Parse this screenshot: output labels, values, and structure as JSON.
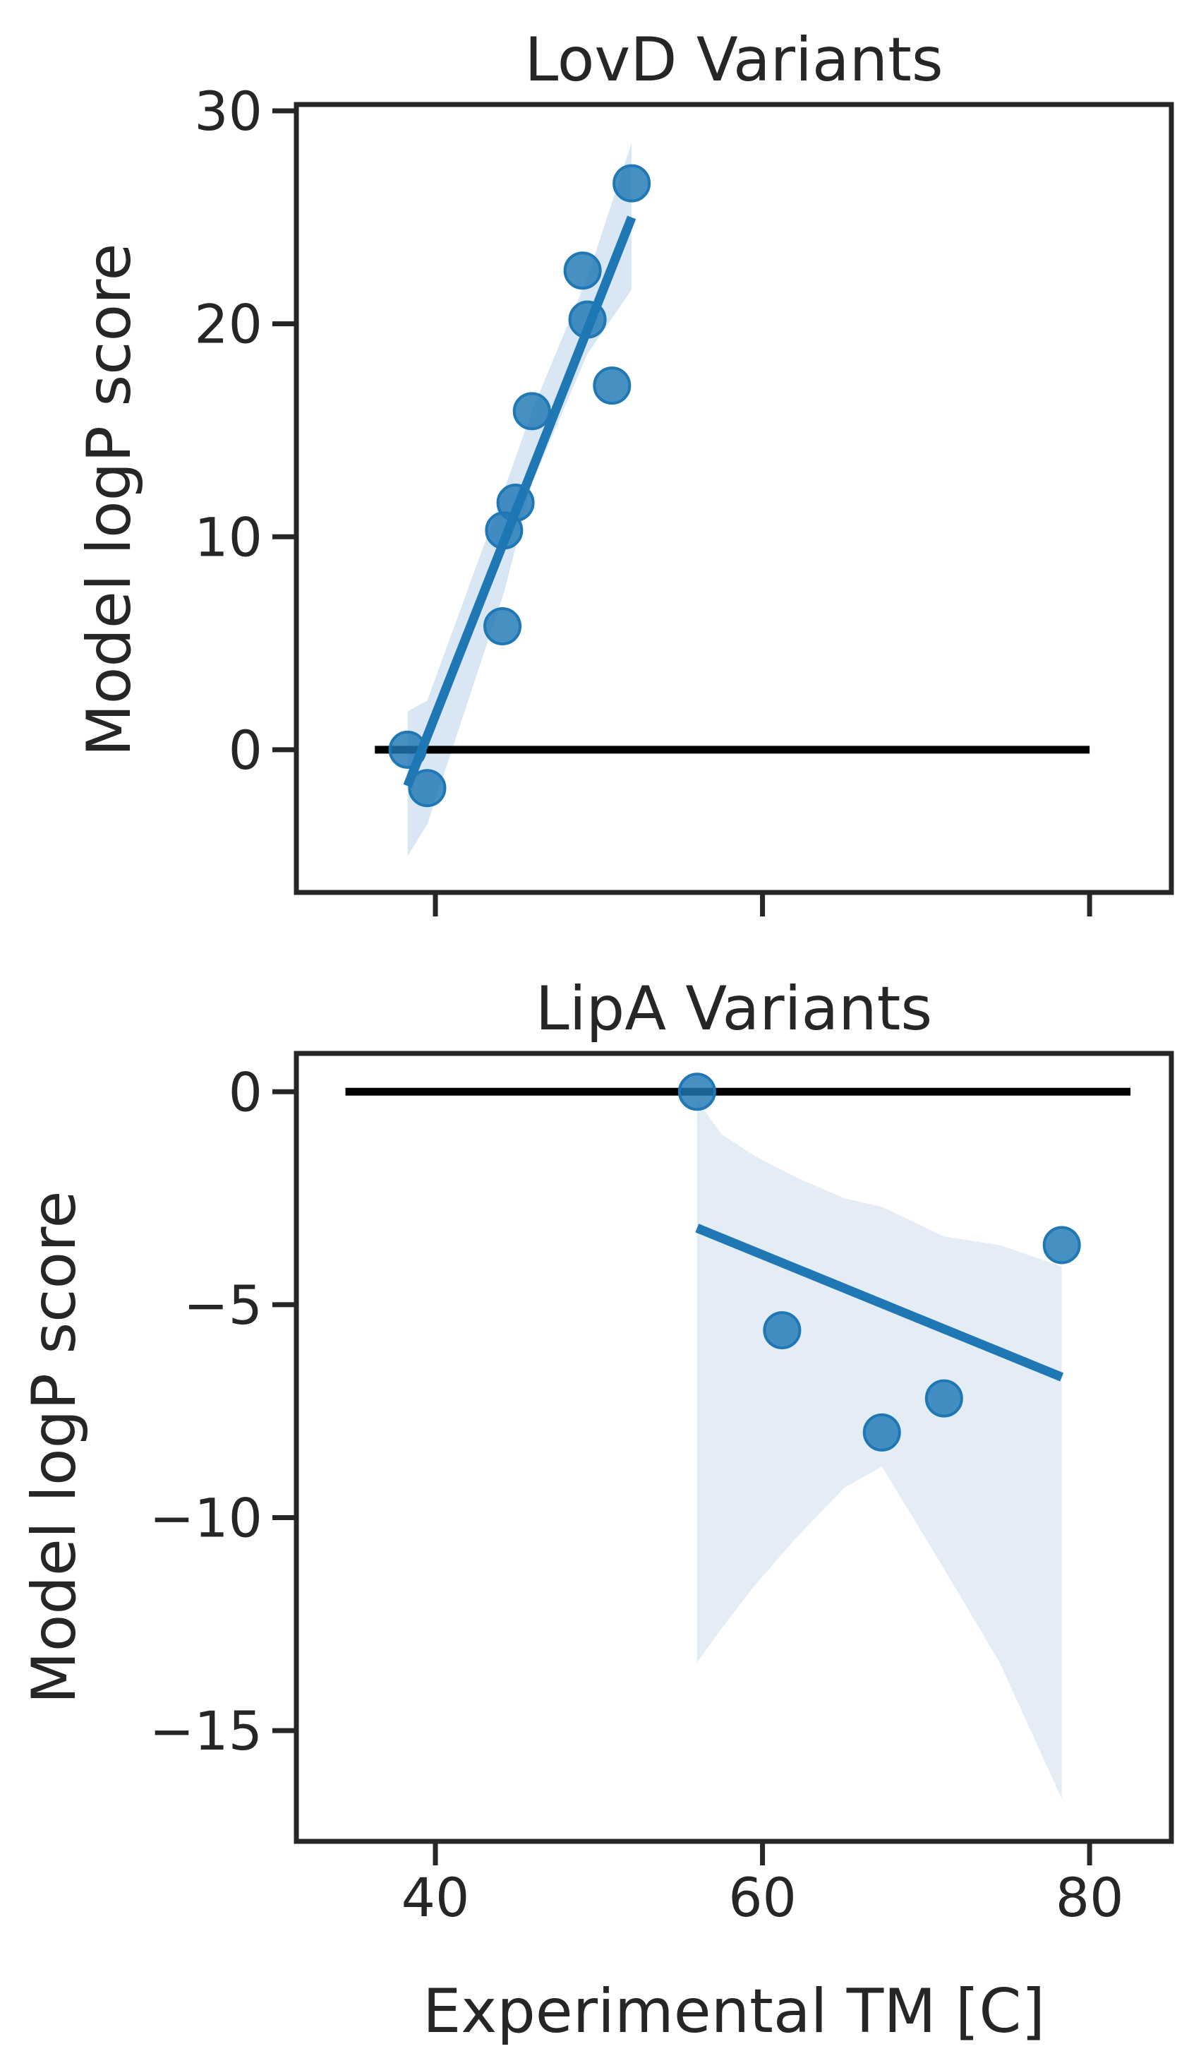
{
  "chart_data": [
    {
      "type": "scatter",
      "title": "LovD Variants",
      "xlabel": "",
      "ylabel": "Model logP score",
      "xlim": [
        31.5,
        85
      ],
      "ylim": [
        -6.7,
        30.3
      ],
      "xticks": [
        40,
        60,
        80
      ],
      "xtick_labels_visible": false,
      "yticks": [
        0,
        10,
        20,
        30
      ],
      "ytick_labels": [
        "0",
        "10",
        "20",
        "30"
      ],
      "grid": false,
      "legend": "none",
      "colors": {
        "points": "#1f77b4",
        "regression": "#1f77b4",
        "ci_band": "#cfe0f1",
        "reference": "#000000"
      },
      "points": {
        "x": [
          38.3,
          39.5,
          44.1,
          44.2,
          44.9,
          45.9,
          49.0,
          49.3,
          50.8,
          52.0
        ],
        "y": [
          0.0,
          -1.8,
          5.8,
          10.3,
          11.6,
          15.9,
          22.5,
          20.2,
          17.1,
          26.6
        ]
      },
      "regression": {
        "x": [
          38.3,
          52.0
        ],
        "y": [
          -1.7,
          25.0
        ],
        "ci_x": [
          38.3,
          39.5,
          44.2,
          45.9,
          49.3,
          52.0
        ],
        "ci_upper": [
          1.8,
          2.3,
          12.2,
          15.9,
          22.2,
          28.5
        ],
        "ci_lower": [
          -5.0,
          -3.5,
          7.4,
          12.5,
          18.6,
          21.6
        ]
      },
      "reference_line": {
        "y": 0,
        "x_start": 36.3,
        "x_end": 80.0
      }
    },
    {
      "type": "scatter",
      "title": "LipA Variants",
      "xlabel": "Experimental TM [C]",
      "ylabel": "Model logP score",
      "xlim": [
        31.5,
        85
      ],
      "ylim": [
        -17.6,
        0.9
      ],
      "xticks": [
        40,
        60,
        80
      ],
      "xtick_labels": [
        "40",
        "60",
        "80"
      ],
      "yticks": [
        0,
        -5,
        -10,
        -15
      ],
      "ytick_labels": [
        "0",
        "−5",
        "−10",
        "−15"
      ],
      "grid": false,
      "legend": "none",
      "colors": {
        "points": "#1f77b4",
        "regression": "#1f77b4",
        "ci_band": "#dde8f4",
        "reference": "#000000"
      },
      "points": {
        "x": [
          56.0,
          61.2,
          67.3,
          71.1,
          78.3
        ],
        "y": [
          0.0,
          -5.6,
          -8.0,
          -7.2,
          -3.6
        ]
      },
      "regression": {
        "x": [
          56.0,
          78.3
        ],
        "y": [
          -3.2,
          -6.7
        ],
        "ci_x": [
          56.0,
          57.5,
          59.5,
          62.0,
          65.0,
          67.3,
          71.1,
          74.5,
          78.3
        ],
        "ci_upper": [
          -0.2,
          -1.0,
          -1.5,
          -2.0,
          -2.5,
          -2.7,
          -3.4,
          -3.6,
          -4.1
        ],
        "ci_lower": [
          -13.4,
          -12.6,
          -11.6,
          -10.5,
          -9.3,
          -8.8,
          -11.2,
          -13.4,
          -16.6
        ]
      },
      "reference_line": {
        "y": 0,
        "x_start": 34.5,
        "x_end": 82.5
      }
    }
  ]
}
